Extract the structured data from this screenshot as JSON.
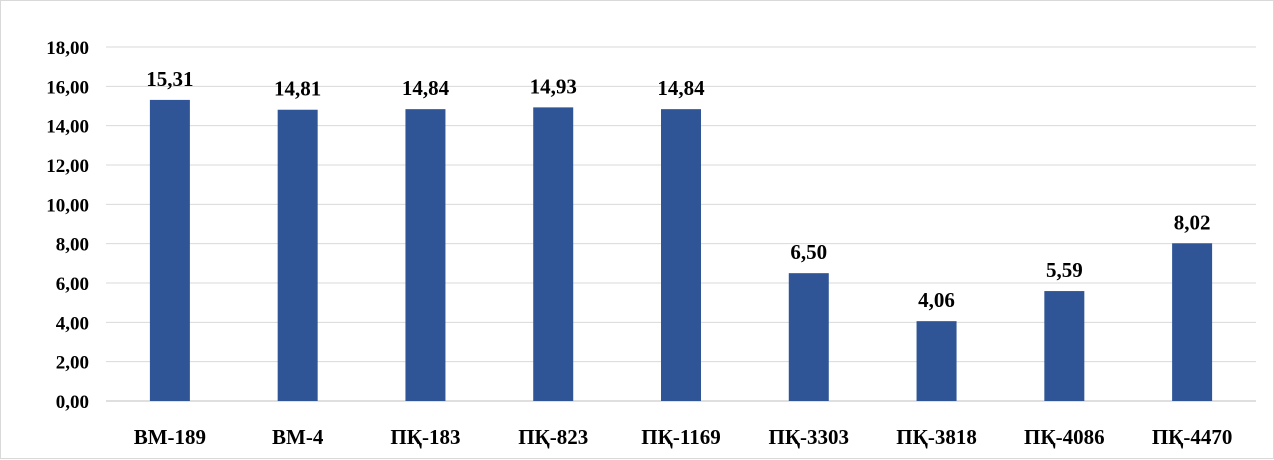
{
  "chart_data": {
    "type": "bar",
    "title": "",
    "xlabel": "",
    "ylabel": "",
    "categories": [
      "ВМ-189",
      "ВМ-4",
      "ПҚ-183",
      "ПҚ-823",
      "ПҚ-1169",
      "ПҚ-3303",
      "ПҚ-3818",
      "ПҚ-4086",
      "ПҚ-4470"
    ],
    "values": [
      15.31,
      14.81,
      14.84,
      14.93,
      14.84,
      6.5,
      4.06,
      5.59,
      8.02
    ],
    "value_labels": [
      "15,31",
      "14,81",
      "14,84",
      "14,93",
      "14,84",
      "6,50",
      "4,06",
      "5,59",
      "8,02"
    ],
    "ylim": [
      0,
      18
    ],
    "yticks": [
      0,
      2,
      4,
      6,
      8,
      10,
      12,
      14,
      16,
      18
    ],
    "ytick_labels": [
      "0,00",
      "2,00",
      "4,00",
      "6,00",
      "8,00",
      "10,00",
      "12,00",
      "14,00",
      "16,00",
      "18,00"
    ],
    "grid": true,
    "legend": "none",
    "bar_color": "#2f5597",
    "grid_color": "#d9d9d9"
  }
}
